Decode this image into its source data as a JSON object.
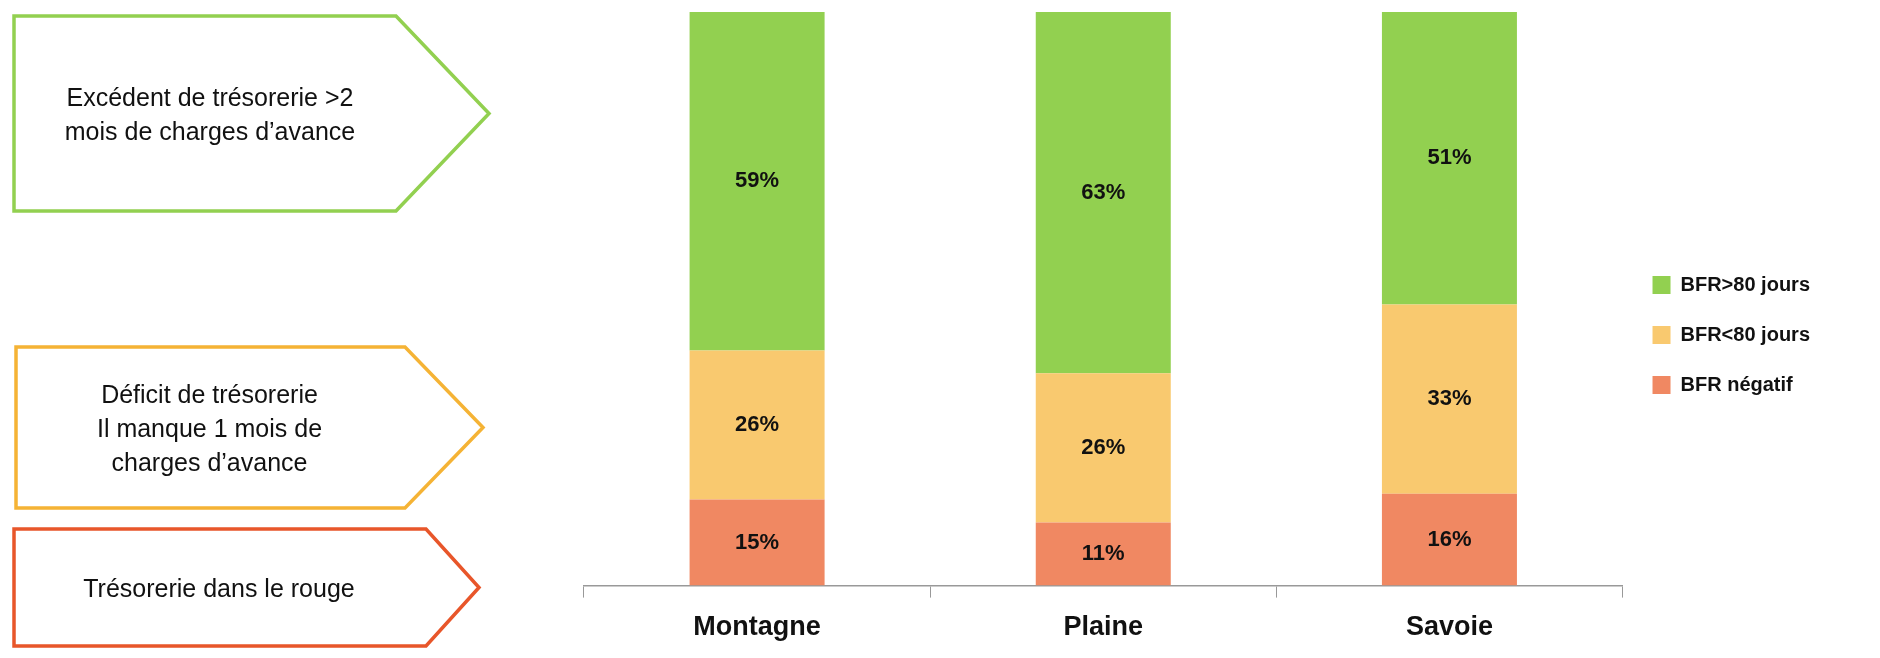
{
  "chart_data": {
    "type": "bar",
    "stacked": true,
    "legend": "right",
    "categories": [
      "Montagne",
      "Plaine",
      "Savoie"
    ],
    "series": [
      {
        "name": "BFR négatif",
        "color": "#f08862",
        "values": [
          15,
          11,
          16
        ],
        "value_labels": [
          "15%",
          "11%",
          "16%"
        ]
      },
      {
        "name": "BFR<80 jours",
        "color": "#f9c96f",
        "values": [
          26,
          26,
          33
        ],
        "value_labels": [
          "26%",
          "26%",
          "33%"
        ]
      },
      {
        "name": "BFR>80 jours",
        "color": "#92d050",
        "values": [
          59,
          63,
          51
        ],
        "value_labels": [
          "59%",
          "63%",
          "51%"
        ]
      }
    ],
    "annotations": [
      "Excédent de trésorerie >2\nmois de charges d’avance",
      "Déficit de trésorerie\nIl manque 1 mois de\ncharges d’avance",
      "Trésorerie dans le rouge"
    ]
  }
}
